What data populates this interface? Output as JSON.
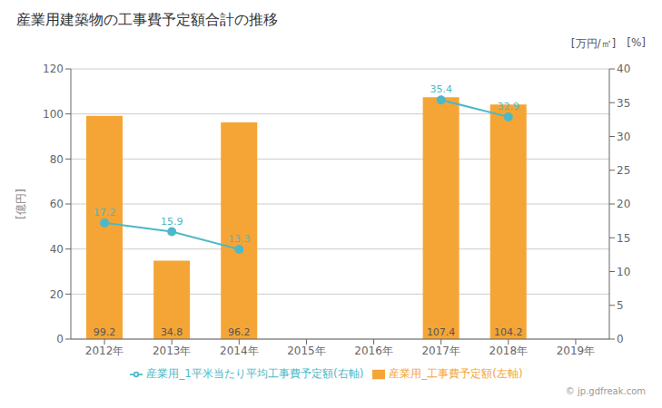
{
  "chart_data": {
    "type": "bar",
    "title": "産業用建築物の工事費予定額合計の推移",
    "categories": [
      "2012年",
      "2013年",
      "2014年",
      "2015年",
      "2016年",
      "2017年",
      "2018年",
      "2019年"
    ],
    "y_label": "[億円]",
    "y2_label": "[万円/㎡]",
    "annotations": [
      "[%]",
      "© jp.gdfreak.com"
    ],
    "ylim": [
      0,
      120
    ],
    "yticks": [
      0,
      20,
      40,
      60,
      80,
      100,
      120
    ],
    "y2lim": [
      0,
      40
    ],
    "y2ticks": [
      0,
      5,
      10,
      15,
      20,
      25,
      30,
      35,
      40
    ],
    "grid": true,
    "legend": "bottom",
    "series": [
      {
        "name": "産業用_工事費予定額(左軸)",
        "type": "bar",
        "color": "#f5a535",
        "data_labels": true,
        "values": [
          99.2,
          34.8,
          96.2,
          null,
          null,
          107.4,
          104.2,
          null
        ]
      },
      {
        "name": "産業用_1平米当たり平均工事費予定額(右軸)",
        "type": "line",
        "axis": "y2",
        "color": "#4db8c8",
        "marker": "circle",
        "line_style": "solid",
        "data_labels": true,
        "values": [
          17.2,
          15.9,
          13.3,
          null,
          null,
          35.4,
          32.9,
          null
        ]
      }
    ]
  }
}
